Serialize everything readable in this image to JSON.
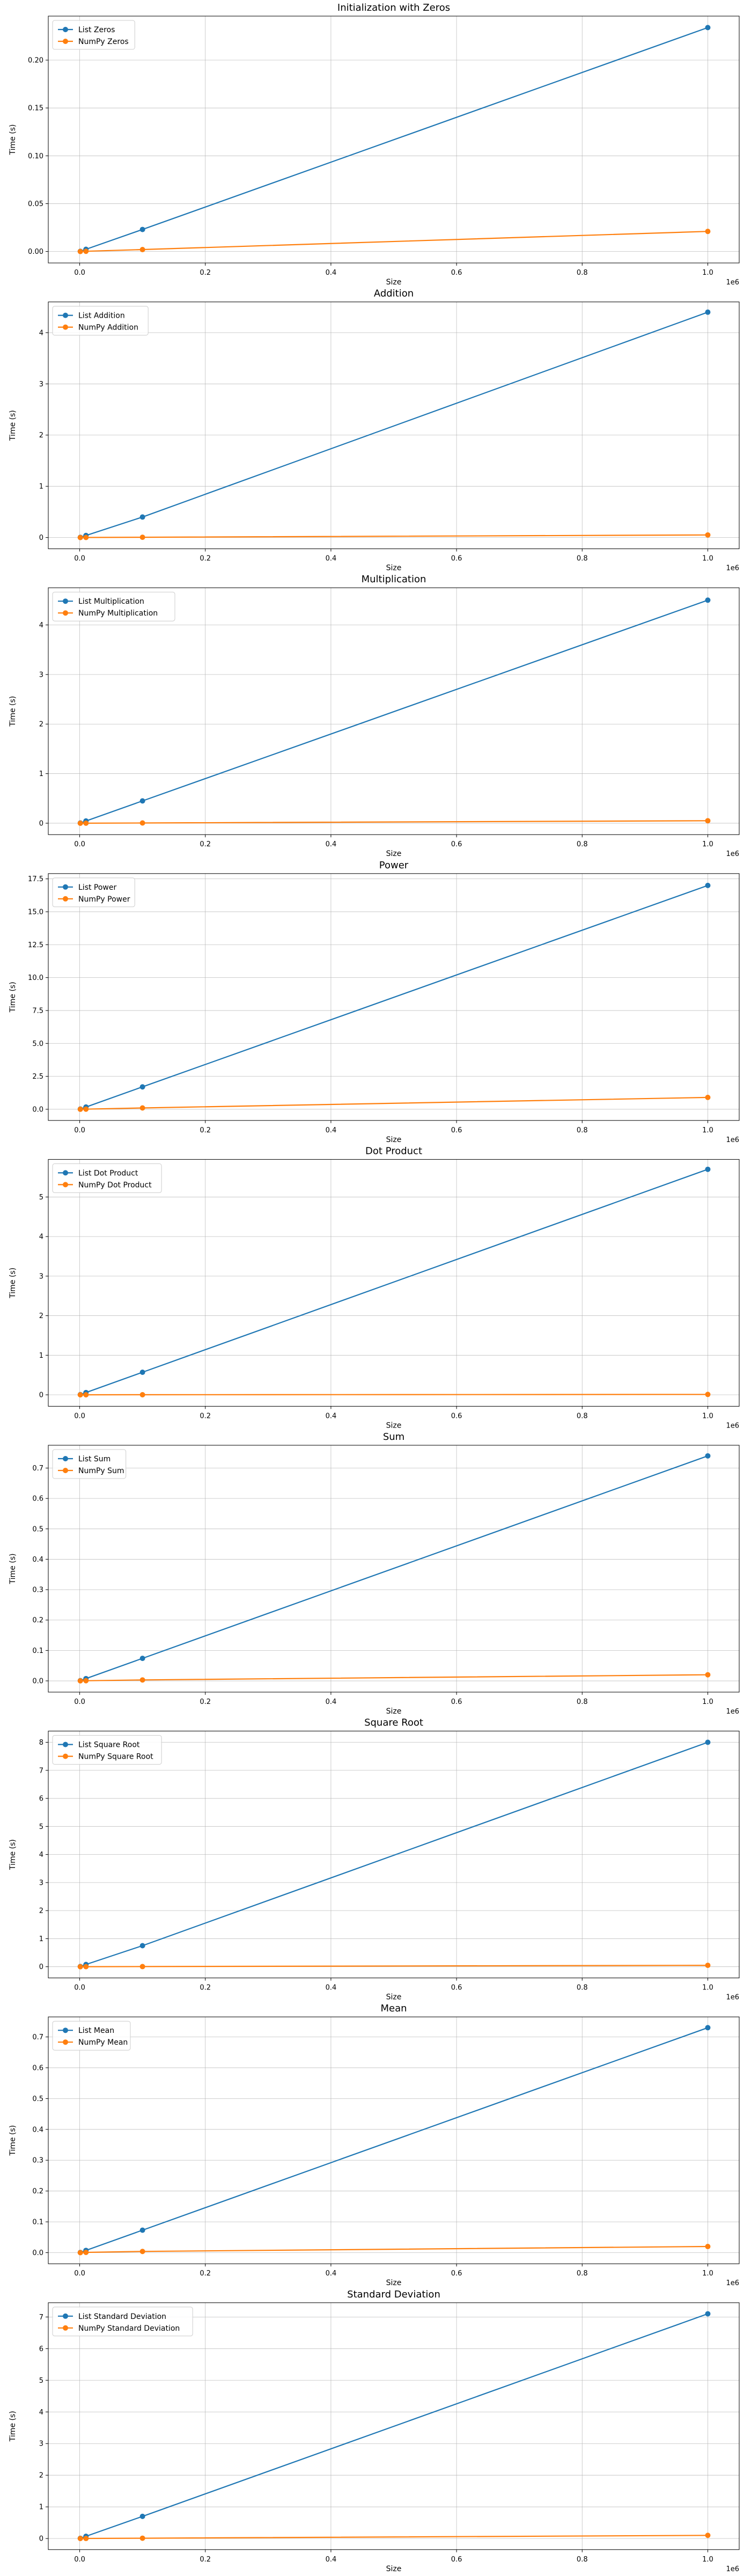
{
  "colors": {
    "list": "#1f77b4",
    "numpy": "#ff7f0e"
  },
  "chart_data": [
    {
      "type": "line",
      "title": "Initialization with Zeros",
      "xlabel": "Size",
      "ylabel": "Time (s)",
      "x_offset_label": "1e6",
      "x": [
        1000,
        10000,
        100000,
        1000000
      ],
      "xlim": [
        -50000,
        1050000
      ],
      "ylim": [
        -0.012,
        0.246
      ],
      "xticks": [
        0.0,
        0.2,
        0.4,
        0.6,
        0.8,
        1.0
      ],
      "yticks": [
        "0.00",
        "0.05",
        "0.10",
        "0.15",
        "0.20"
      ],
      "ytick_values": [
        0,
        0.05,
        0.1,
        0.15,
        0.2
      ],
      "series": [
        {
          "name": "List Zeros",
          "values": [
            0.0002,
            0.0023,
            0.023,
            0.234
          ]
        },
        {
          "name": "NumPy Zeros",
          "values": [
            2e-05,
            0.0002,
            0.002,
            0.021
          ]
        }
      ],
      "grid": true,
      "legend": "upper left"
    },
    {
      "type": "line",
      "title": "Addition",
      "xlabel": "Size",
      "ylabel": "Time (s)",
      "x_offset_label": "1e6",
      "x": [
        1000,
        10000,
        100000,
        1000000
      ],
      "xlim": [
        -50000,
        1050000
      ],
      "ylim": [
        -0.22,
        4.6
      ],
      "xticks": [
        0.0,
        0.2,
        0.4,
        0.6,
        0.8,
        1.0
      ],
      "yticks": [
        "0",
        "1",
        "2",
        "3",
        "4"
      ],
      "ytick_values": [
        0,
        1,
        2,
        3,
        4
      ],
      "series": [
        {
          "name": "List Addition",
          "values": [
            0.004,
            0.04,
            0.4,
            4.4
          ]
        },
        {
          "name": "NumPy Addition",
          "values": [
            0.0001,
            0.001,
            0.005,
            0.05
          ]
        }
      ],
      "grid": true,
      "legend": "upper left"
    },
    {
      "type": "line",
      "title": "Multiplication",
      "xlabel": "Size",
      "ylabel": "Time (s)",
      "x_offset_label": "1e6",
      "x": [
        1000,
        10000,
        100000,
        1000000
      ],
      "xlim": [
        -50000,
        1050000
      ],
      "ylim": [
        -0.23,
        4.75
      ],
      "xticks": [
        0.0,
        0.2,
        0.4,
        0.6,
        0.8,
        1.0
      ],
      "yticks": [
        "0",
        "1",
        "2",
        "3",
        "4"
      ],
      "ytick_values": [
        0,
        1,
        2,
        3,
        4
      ],
      "series": [
        {
          "name": "List Multiplication",
          "values": [
            0.0045,
            0.045,
            0.45,
            4.5
          ]
        },
        {
          "name": "NumPy Multiplication",
          "values": [
            0.0001,
            0.001,
            0.005,
            0.05
          ]
        }
      ],
      "grid": true,
      "legend": "upper left"
    },
    {
      "type": "line",
      "title": "Power",
      "xlabel": "Size",
      "ylabel": "Time (s)",
      "x_offset_label": "1e6",
      "x": [
        1000,
        10000,
        100000,
        1000000
      ],
      "xlim": [
        -50000,
        1050000
      ],
      "ylim": [
        -0.85,
        17.9
      ],
      "xticks": [
        0.0,
        0.2,
        0.4,
        0.6,
        0.8,
        1.0
      ],
      "yticks": [
        "0.0",
        "2.5",
        "5.0",
        "7.5",
        "10.0",
        "12.5",
        "15.0",
        "17.5"
      ],
      "ytick_values": [
        0,
        2.5,
        5.0,
        7.5,
        10.0,
        12.5,
        15.0,
        17.5
      ],
      "series": [
        {
          "name": "List Power",
          "values": [
            0.017,
            0.17,
            1.7,
            17.0
          ]
        },
        {
          "name": "NumPy Power",
          "values": [
            0.001,
            0.01,
            0.1,
            0.9
          ]
        }
      ],
      "grid": true,
      "legend": "upper left"
    },
    {
      "type": "line",
      "title": "Dot Product",
      "xlabel": "Size",
      "ylabel": "Time (s)",
      "x_offset_label": "1e6",
      "x": [
        1000,
        10000,
        100000,
        1000000
      ],
      "xlim": [
        -50000,
        1050000
      ],
      "ylim": [
        -0.29,
        5.95
      ],
      "xticks": [
        0.0,
        0.2,
        0.4,
        0.6,
        0.8,
        1.0
      ],
      "yticks": [
        "0",
        "1",
        "2",
        "3",
        "4",
        "5"
      ],
      "ytick_values": [
        0,
        1,
        2,
        3,
        4,
        5
      ],
      "series": [
        {
          "name": "List Dot Product",
          "values": [
            0.0057,
            0.057,
            0.57,
            5.7
          ]
        },
        {
          "name": "NumPy Dot Product",
          "values": [
            0.0001,
            0.0005,
            0.002,
            0.01
          ]
        }
      ],
      "grid": true,
      "legend": "upper left"
    },
    {
      "type": "line",
      "title": "Sum",
      "xlabel": "Size",
      "ylabel": "Time (s)",
      "x_offset_label": "1e6",
      "x": [
        1000,
        10000,
        100000,
        1000000
      ],
      "xlim": [
        -50000,
        1050000
      ],
      "ylim": [
        -0.037,
        0.775
      ],
      "xticks": [
        0.0,
        0.2,
        0.4,
        0.6,
        0.8,
        1.0
      ],
      "yticks": [
        "0.0",
        "0.1",
        "0.2",
        "0.3",
        "0.4",
        "0.5",
        "0.6",
        "0.7"
      ],
      "ytick_values": [
        0,
        0.1,
        0.2,
        0.3,
        0.4,
        0.5,
        0.6,
        0.7
      ],
      "series": [
        {
          "name": "List Sum",
          "values": [
            0.0007,
            0.0074,
            0.074,
            0.74
          ]
        },
        {
          "name": "NumPy Sum",
          "values": [
            5e-05,
            0.0005,
            0.003,
            0.02
          ]
        }
      ],
      "grid": true,
      "legend": "upper left"
    },
    {
      "type": "line",
      "title": "Square Root",
      "xlabel": "Size",
      "ylabel": "Time (s)",
      "x_offset_label": "1e6",
      "x": [
        1000,
        10000,
        100000,
        1000000
      ],
      "xlim": [
        -50000,
        1050000
      ],
      "ylim": [
        -0.4,
        8.4
      ],
      "xticks": [
        0.0,
        0.2,
        0.4,
        0.6,
        0.8,
        1.0
      ],
      "yticks": [
        "0",
        "1",
        "2",
        "3",
        "4",
        "5",
        "6",
        "7",
        "8"
      ],
      "ytick_values": [
        0,
        1,
        2,
        3,
        4,
        5,
        6,
        7,
        8
      ],
      "series": [
        {
          "name": "List Square Root",
          "values": [
            0.008,
            0.08,
            0.75,
            8.0
          ]
        },
        {
          "name": "NumPy Square Root",
          "values": [
            0.0005,
            0.002,
            0.005,
            0.05
          ]
        }
      ],
      "grid": true,
      "legend": "upper left"
    },
    {
      "type": "line",
      "title": "Mean",
      "xlabel": "Size",
      "ylabel": "Time (s)",
      "x_offset_label": "1e6",
      "x": [
        1000,
        10000,
        100000,
        1000000
      ],
      "xlim": [
        -50000,
        1050000
      ],
      "ylim": [
        -0.036,
        0.765
      ],
      "xticks": [
        0.0,
        0.2,
        0.4,
        0.6,
        0.8,
        1.0
      ],
      "yticks": [
        "0.0",
        "0.1",
        "0.2",
        "0.3",
        "0.4",
        "0.5",
        "0.6",
        "0.7"
      ],
      "ytick_values": [
        0,
        0.1,
        0.2,
        0.3,
        0.4,
        0.5,
        0.6,
        0.7
      ],
      "series": [
        {
          "name": "List Mean",
          "values": [
            0.0007,
            0.0073,
            0.073,
            0.73
          ]
        },
        {
          "name": "NumPy Mean",
          "values": [
            0.0001,
            0.001,
            0.004,
            0.02
          ]
        }
      ],
      "grid": true,
      "legend": "upper left"
    },
    {
      "type": "line",
      "title": "Standard Deviation",
      "xlabel": "Size",
      "ylabel": "Time (s)",
      "x_offset_label": "1e6",
      "x": [
        1000,
        10000,
        100000,
        1000000
      ],
      "xlim": [
        -50000,
        1050000
      ],
      "ylim": [
        -0.35,
        7.45
      ],
      "xticks": [
        0.0,
        0.2,
        0.4,
        0.6,
        0.8,
        1.0
      ],
      "yticks": [
        "0",
        "1",
        "2",
        "3",
        "4",
        "5",
        "6",
        "7"
      ],
      "ytick_values": [
        0,
        1,
        2,
        3,
        4,
        5,
        6,
        7
      ],
      "series": [
        {
          "name": "List Standard Deviation",
          "values": [
            0.007,
            0.07,
            0.7,
            7.1
          ]
        },
        {
          "name": "NumPy Standard Deviation",
          "values": [
            0.0005,
            0.002,
            0.01,
            0.1
          ]
        }
      ],
      "grid": true,
      "legend": "upper left"
    }
  ]
}
